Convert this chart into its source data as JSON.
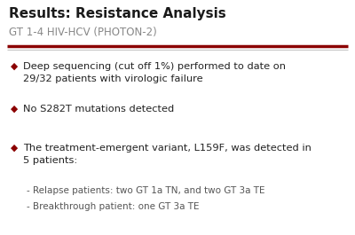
{
  "title": "Results: Resistance Analysis",
  "subtitle": "GT 1-4 HIV-HCV (PHOTON-2)",
  "title_color": "#1a1a1a",
  "subtitle_color": "#888888",
  "background_color": "#ffffff",
  "bullet_color": "#8b0000",
  "separator_color_dark": "#8b0000",
  "separator_color_light": "#c8c8c8",
  "text_color": "#222222",
  "sub_bullet_color": "#555555",
  "font_size_title": 11,
  "font_size_subtitle": 8.5,
  "font_size_bullet": 8.2,
  "font_size_subbullet": 7.5,
  "bullets": [
    "Deep sequencing (cut off 1%) performed to date on\n29/32 patients with virologic failure",
    "No S282T mutations detected",
    "The treatment-emergent variant, L159F, was detected in\n5 patients:"
  ],
  "sub_bullets": [
    "- Relapse patients: two GT 1a TN, and two GT 3a TE",
    "- Breakthrough patient: one GT 3a TE"
  ]
}
